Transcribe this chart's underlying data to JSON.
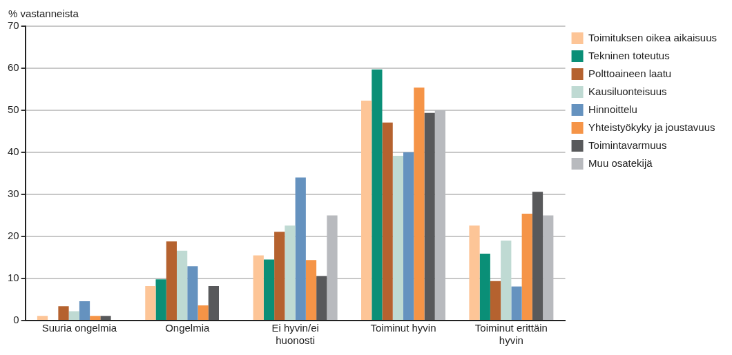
{
  "chart_data": {
    "type": "bar",
    "ylabel": "% vastanneista",
    "categories": [
      "Suuria ongelmia",
      "Ongelmia",
      "Ei hyvin/ei huonosti",
      "Toiminut hyvin",
      "Toiminut erittäin hyvin"
    ],
    "series": [
      {
        "name": "Toimituksen oikea aikaisuus",
        "color": "#fdc597",
        "values": [
          1.1,
          8.2,
          15.5,
          52.3,
          22.6
        ]
      },
      {
        "name": "Tekninen toteutus",
        "color": "#0a8f77",
        "values": [
          0,
          9.8,
          14.5,
          59.7,
          15.9
        ]
      },
      {
        "name": "Polttoaineen laatu",
        "color": "#b5622f",
        "values": [
          3.4,
          18.8,
          21.1,
          47.1,
          9.4
        ]
      },
      {
        "name": "Kausiluonteisuus",
        "color": "#bfdad3",
        "values": [
          2.2,
          16.6,
          22.6,
          39.2,
          19
        ]
      },
      {
        "name": "Hinnoittelu",
        "color": "#6592bf",
        "values": [
          4.6,
          12.9,
          34,
          40,
          8.1
        ]
      },
      {
        "name": "Yhteistyökyky ja joustavuus",
        "color": "#f59447",
        "values": [
          1.1,
          3.6,
          14.4,
          55.4,
          25.4
        ]
      },
      {
        "name": "Toimintavarmuus",
        "color": "#58595b",
        "values": [
          1.1,
          8.2,
          10.6,
          49.4,
          30.6
        ]
      },
      {
        "name": "Muu osatekijä",
        "color": "#b8babe",
        "values": [
          0,
          0,
          25,
          50,
          25
        ]
      }
    ],
    "ylim": [
      0,
      70
    ],
    "yticks": [
      0,
      10,
      20,
      30,
      40,
      50,
      60,
      70
    ],
    "grid": "y",
    "legend": "top right"
  }
}
